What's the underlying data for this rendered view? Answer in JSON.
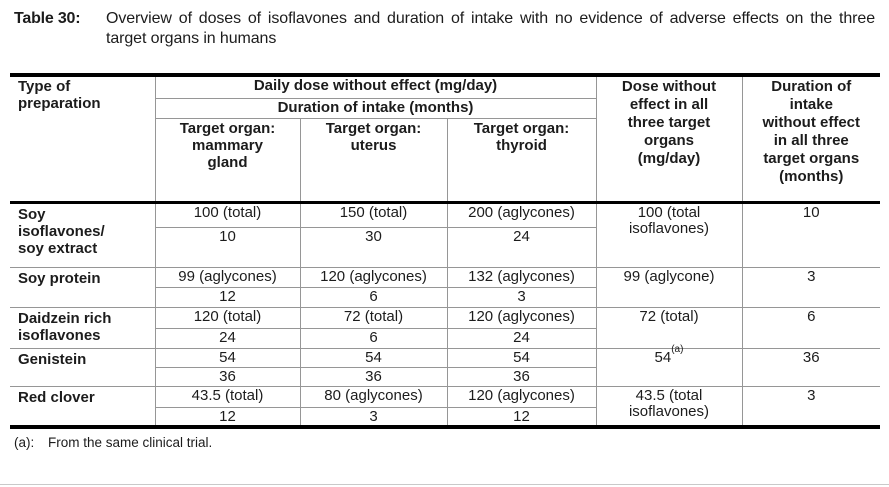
{
  "colors": {
    "text": "#1c1c1c",
    "thick_rule": "#000000",
    "thin_rule": "#969696",
    "background": "#ffffff"
  },
  "caption": {
    "label": "Table 30:",
    "text": "Overview of doses of isoflavones and duration of intake with no evidence of adverse effects on the three target organs in humans"
  },
  "table": {
    "header": {
      "col_preparation": "Type of preparation",
      "group_dose": "Daily dose without effect (mg/day)",
      "group_duration": "Duration of intake (months)",
      "organ_columns": [
        "Target organ: mammary gland",
        "Target organ: uterus",
        "Target organ: thyroid"
      ],
      "col_all_dose": "Dose without effect in all three target organs (mg/day)",
      "col_all_duration": "Duration of intake without effect in all three target organs (months)"
    },
    "rows": [
      {
        "preparation": "Soy isoflavones/ soy extract",
        "mammary_dose": "100 (total)",
        "mammary_duration": "10",
        "uterus_dose": "150 (total)",
        "uterus_duration": "30",
        "thyroid_dose": "200 (aglycones)",
        "thyroid_duration": "24",
        "all_dose": "100 (total isoflavones)",
        "all_duration": "10"
      },
      {
        "preparation": "Soy protein",
        "mammary_dose": "99 (aglycones)",
        "mammary_duration": "12",
        "uterus_dose": "120 (aglycones)",
        "uterus_duration": "6",
        "thyroid_dose": "132 (aglycones)",
        "thyroid_duration": "3",
        "all_dose": "99 (aglycone)",
        "all_duration": "3"
      },
      {
        "preparation": "Daidzein rich isoflavones",
        "mammary_dose": "120 (total)",
        "mammary_duration": "24",
        "uterus_dose": "72 (total)",
        "uterus_duration": "6",
        "thyroid_dose": "120 (aglycones)",
        "thyroid_duration": "24",
        "all_dose": "72 (total)",
        "all_duration": "6"
      },
      {
        "preparation": "Genistein",
        "mammary_dose": "54",
        "mammary_duration": "36",
        "uterus_dose": "54",
        "uterus_duration": "36",
        "thyroid_dose": "54",
        "thyroid_duration": "36",
        "all_dose": "54",
        "all_dose_sup": "(a)",
        "all_duration": "36"
      },
      {
        "preparation": "Red clover",
        "mammary_dose": "43.5 (total)",
        "mammary_duration": "12",
        "uterus_dose": "80 (aglycones)",
        "uterus_duration": "3",
        "thyroid_dose": "120 (aglycones)",
        "thyroid_duration": "12",
        "all_dose": "43.5 (total isoflavones)",
        "all_duration": "3"
      }
    ]
  },
  "footnote": {
    "marker": "(a):",
    "text": "From the same clinical trial."
  }
}
